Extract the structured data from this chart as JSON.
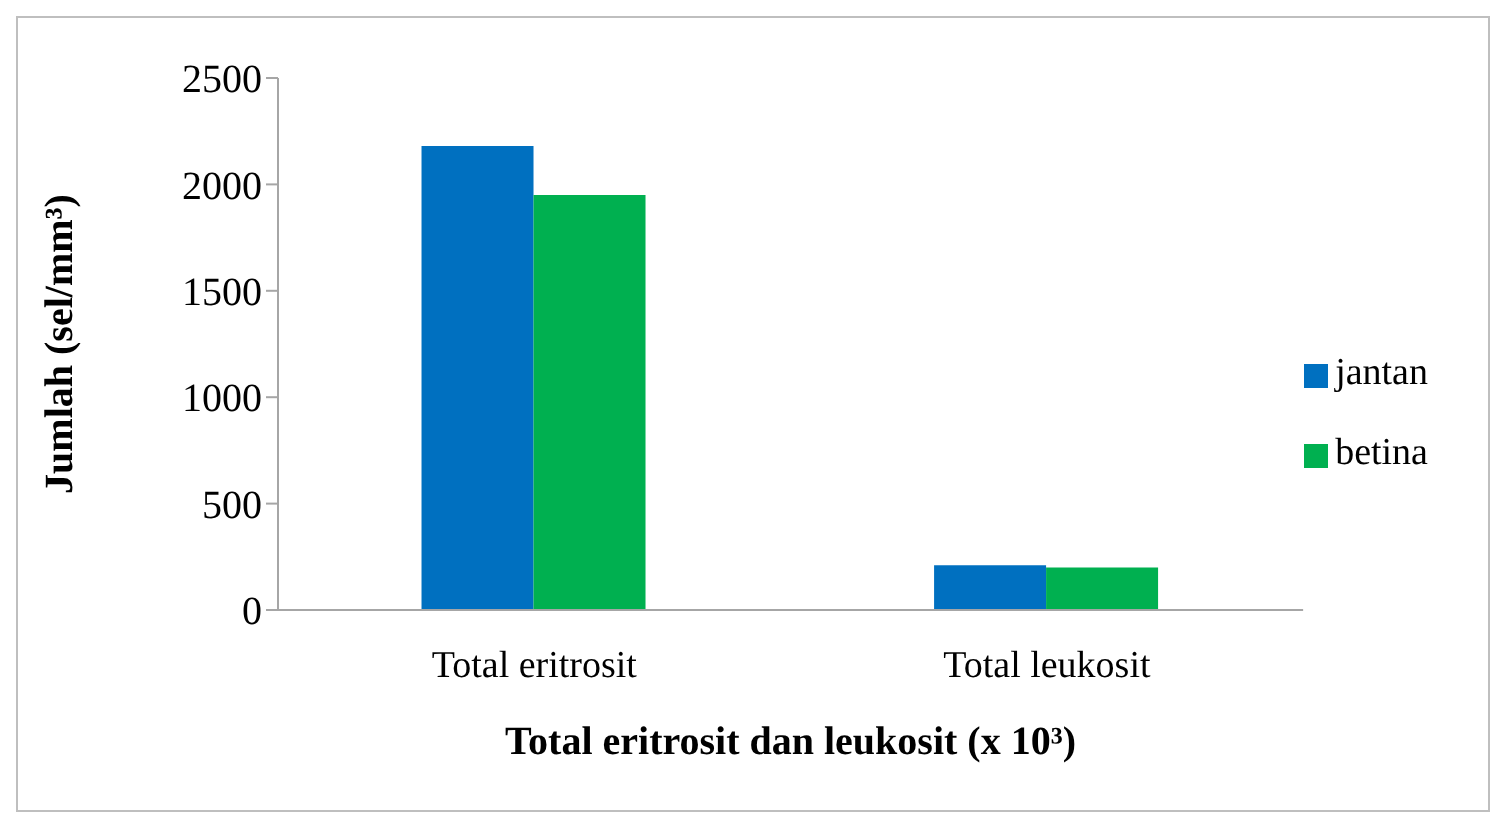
{
  "chart_data": {
    "type": "bar",
    "xlabel": "Total eritrosit dan leukosit (x 10³)",
    "ylabel": "Jumlah (sel/mm³)",
    "categories": [
      "Total eritrosit",
      "Total leukosit"
    ],
    "series": [
      {
        "name": "jantan",
        "color": "#0070c0",
        "values": [
          2180,
          210
        ]
      },
      {
        "name": "betina",
        "color": "#00b050",
        "values": [
          1950,
          200
        ]
      }
    ],
    "ylim": [
      0,
      2500
    ],
    "yticks": [
      0,
      500,
      1000,
      1500,
      2000,
      2500
    ],
    "grid": false,
    "legend": "right"
  }
}
